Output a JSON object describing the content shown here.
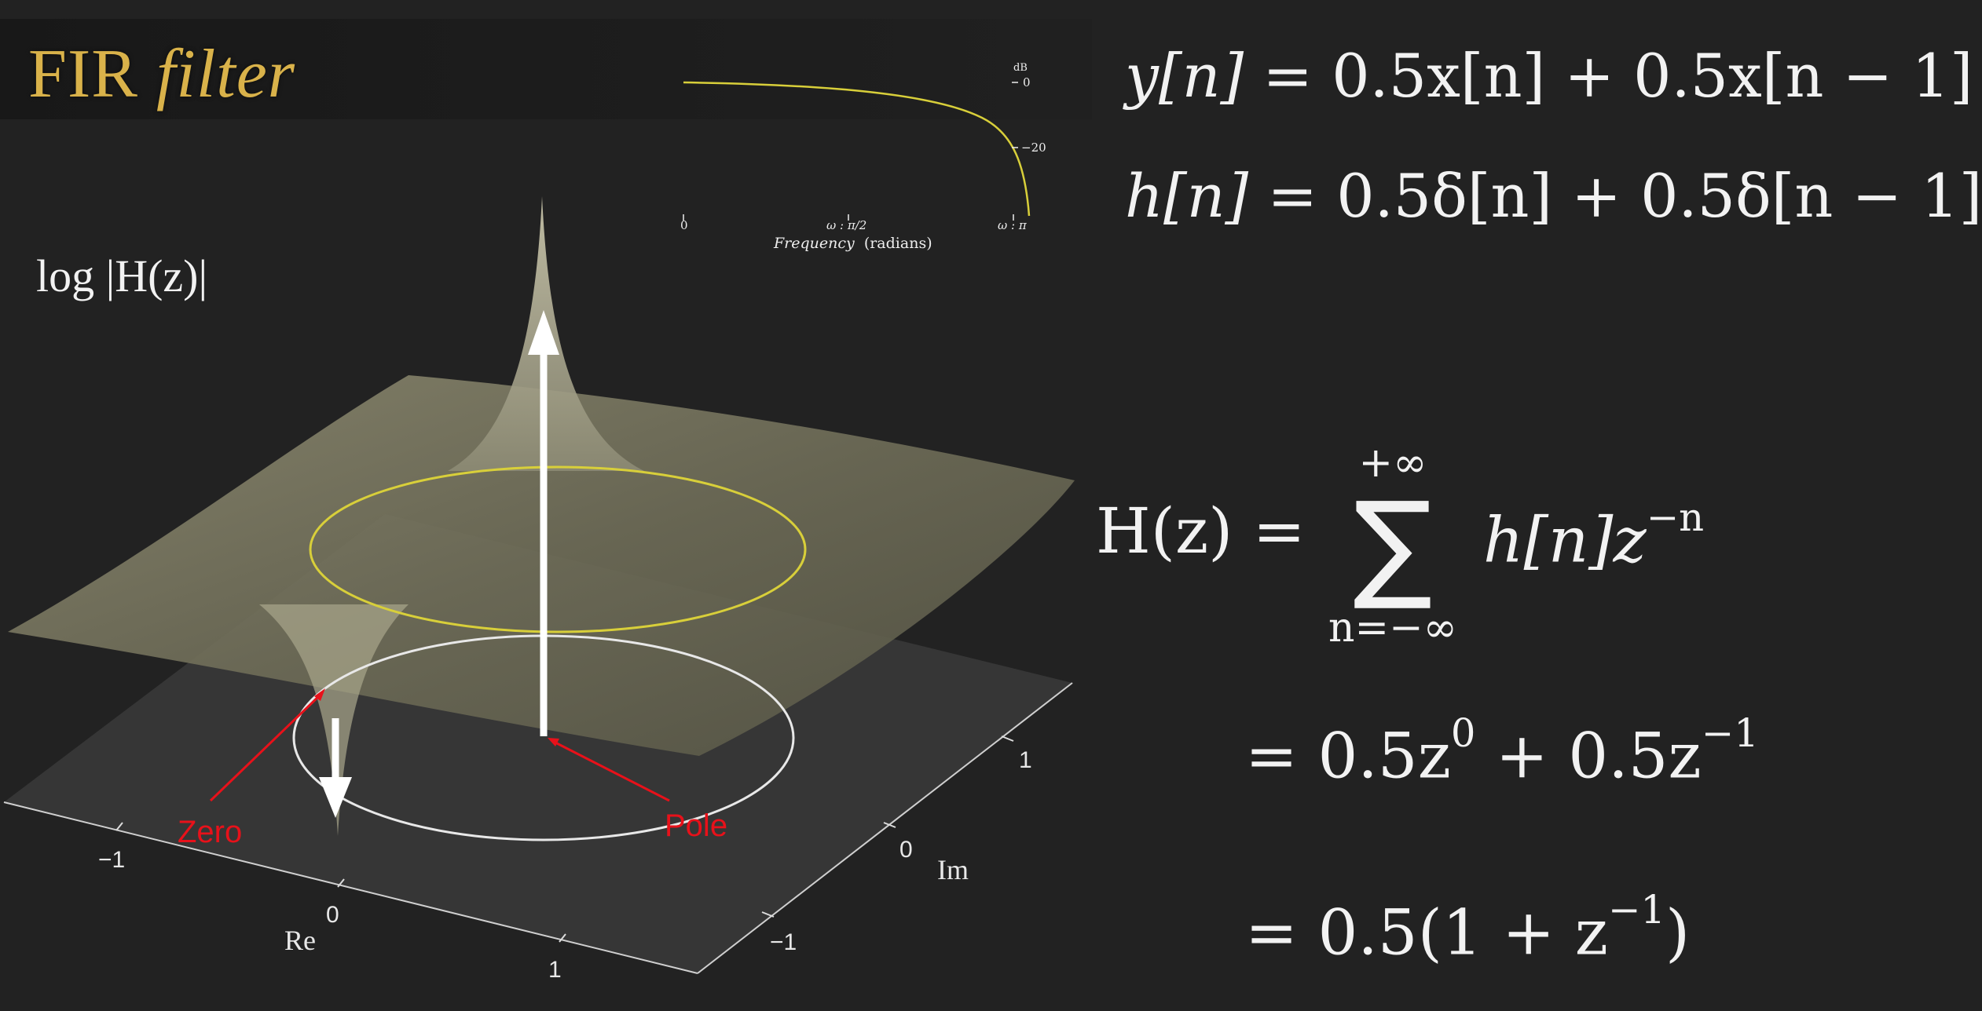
{
  "title": {
    "main": "FIR",
    "italic": "filter"
  },
  "surface_label": "log |H(z)|",
  "freq_plot": {
    "db_unit": "dB",
    "db_ticks": [
      "0",
      "−20"
    ],
    "x_ticks": [
      "0",
      "ω : π/2",
      "ω : π"
    ],
    "xlabel_italic": "Frequency",
    "xlabel_rest": "(radians)",
    "curve_color": "#d8cf3a"
  },
  "axes3d": {
    "re_label": "Re",
    "im_label": "Im",
    "re_ticks": [
      "−1",
      "0",
      "1"
    ],
    "im_ticks": [
      "1",
      "0",
      "−1"
    ]
  },
  "annotations": {
    "zero": "Zero",
    "pole": "Pole",
    "color": "#e8111a"
  },
  "equations": {
    "difference": {
      "lhs": "y[n]",
      "rhs": "= 0.5x[n] + 0.5x[n − 1]"
    },
    "impulse": {
      "lhs": "h[n]",
      "rhs": "= 0.5δ[n] + 0.5δ[n − 1]"
    },
    "transfer": {
      "lhs": "H(z) =",
      "sum_upper": "+∞",
      "sum_symbol": "∑",
      "sum_lower": "n=−∞",
      "summand_base": "h[n]z",
      "summand_exp": "−n"
    },
    "step1": {
      "a": "= 0.5z",
      "a_exp": "0",
      "b": " + 0.5z",
      "b_exp": "−1"
    },
    "step2": {
      "a": "= 0.5(1 + z",
      "a_exp": "−1",
      "b": ")"
    }
  }
}
